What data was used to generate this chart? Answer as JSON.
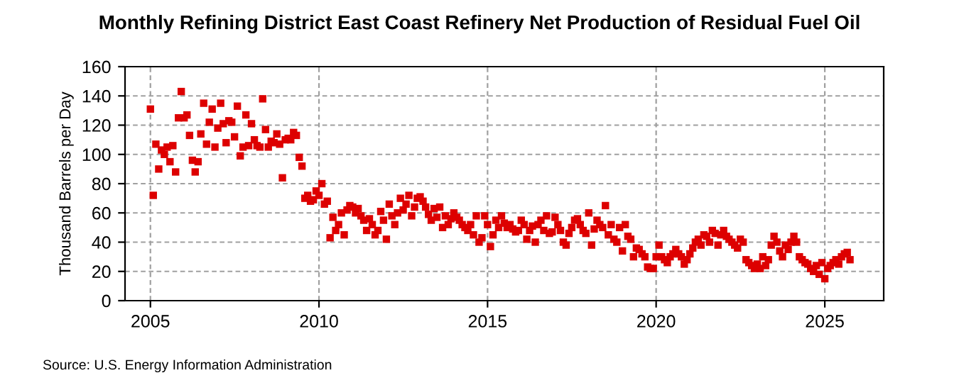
{
  "chart_data": {
    "type": "scatter",
    "title": "Monthly Refining District East Coast Refinery Net Production of Residual Fuel Oil",
    "ylabel": "Thousand Barrels per Day",
    "annotations": [
      "Source: U.S. Energy Information Administration"
    ],
    "series": [
      {
        "color": "#dd0000",
        "x": [
          "2005-01",
          "2005-02",
          "2005-03",
          "2005-04",
          "2005-05",
          "2005-06",
          "2005-07",
          "2005-08",
          "2005-09",
          "2005-10",
          "2005-11",
          "2005-12",
          "2006-01",
          "2006-02",
          "2006-03",
          "2006-04",
          "2006-05",
          "2006-06",
          "2006-07",
          "2006-08",
          "2006-09",
          "2006-10",
          "2006-11",
          "2006-12",
          "2007-01",
          "2007-02",
          "2007-03",
          "2007-04",
          "2007-05",
          "2007-06",
          "2007-07",
          "2007-08",
          "2007-09",
          "2007-10",
          "2007-11",
          "2007-12",
          "2008-01",
          "2008-02",
          "2008-03",
          "2008-04",
          "2008-05",
          "2008-06",
          "2008-07",
          "2008-08",
          "2008-09",
          "2008-10",
          "2008-11",
          "2008-12",
          "2009-01",
          "2009-02",
          "2009-03",
          "2009-04",
          "2009-05",
          "2009-06",
          "2009-07",
          "2009-08",
          "2009-09",
          "2009-10",
          "2009-11",
          "2009-12",
          "2010-01",
          "2010-02",
          "2010-03",
          "2010-04",
          "2010-05",
          "2010-06",
          "2010-07",
          "2010-08",
          "2010-09",
          "2010-10",
          "2010-11",
          "2010-12",
          "2011-01",
          "2011-02",
          "2011-03",
          "2011-04",
          "2011-05",
          "2011-06",
          "2011-07",
          "2011-08",
          "2011-09",
          "2011-10",
          "2011-11",
          "2011-12",
          "2012-01",
          "2012-02",
          "2012-03",
          "2012-04",
          "2012-05",
          "2012-06",
          "2012-07",
          "2012-08",
          "2012-09",
          "2012-10",
          "2012-11",
          "2012-12",
          "2013-01",
          "2013-02",
          "2013-03",
          "2013-04",
          "2013-05",
          "2013-06",
          "2013-07",
          "2013-08",
          "2013-09",
          "2013-10",
          "2013-11",
          "2013-12",
          "2014-01",
          "2014-02",
          "2014-03",
          "2014-04",
          "2014-05",
          "2014-06",
          "2014-07",
          "2014-08",
          "2014-09",
          "2014-10",
          "2014-11",
          "2014-12",
          "2015-01",
          "2015-02",
          "2015-03",
          "2015-04",
          "2015-05",
          "2015-06",
          "2015-07",
          "2015-08",
          "2015-09",
          "2015-10",
          "2015-11",
          "2015-12",
          "2016-01",
          "2016-02",
          "2016-03",
          "2016-04",
          "2016-05",
          "2016-06",
          "2016-07",
          "2016-08",
          "2016-09",
          "2016-10",
          "2016-11",
          "2016-12",
          "2017-01",
          "2017-02",
          "2017-03",
          "2017-04",
          "2017-05",
          "2017-06",
          "2017-07",
          "2017-08",
          "2017-09",
          "2017-10",
          "2017-11",
          "2017-12",
          "2018-01",
          "2018-02",
          "2018-03",
          "2018-04",
          "2018-05",
          "2018-06",
          "2018-07",
          "2018-08",
          "2018-09",
          "2018-10",
          "2018-11",
          "2018-12",
          "2019-01",
          "2019-02",
          "2019-03",
          "2019-04",
          "2019-05",
          "2019-06",
          "2019-07",
          "2019-08",
          "2019-09",
          "2019-10",
          "2019-11",
          "2019-12",
          "2020-01",
          "2020-02",
          "2020-03",
          "2020-04",
          "2020-05",
          "2020-06",
          "2020-07",
          "2020-08",
          "2020-09",
          "2020-10",
          "2020-11",
          "2020-12",
          "2021-01",
          "2021-02",
          "2021-03",
          "2021-04",
          "2021-05",
          "2021-06",
          "2021-07",
          "2021-08",
          "2021-09",
          "2021-10",
          "2021-11",
          "2021-12",
          "2022-01",
          "2022-02",
          "2022-03",
          "2022-04",
          "2022-05",
          "2022-06",
          "2022-07",
          "2022-08",
          "2022-09",
          "2022-10",
          "2022-11",
          "2022-12",
          "2023-01",
          "2023-02",
          "2023-03",
          "2023-04",
          "2023-05",
          "2023-06",
          "2023-07",
          "2023-08",
          "2023-09",
          "2023-10",
          "2023-11",
          "2023-12",
          "2024-01",
          "2024-02",
          "2024-03",
          "2024-04",
          "2024-05",
          "2024-06",
          "2024-07",
          "2024-08",
          "2024-09",
          "2024-10",
          "2024-11",
          "2024-12",
          "2025-01",
          "2025-02",
          "2025-03",
          "2025-04",
          "2025-05",
          "2025-06",
          "2025-07",
          "2025-08",
          "2025-09",
          "2025-10"
        ],
        "values": [
          131,
          72,
          107,
          90,
          103,
          100,
          105,
          95,
          106,
          88,
          125,
          143,
          125,
          127,
          113,
          96,
          88,
          95,
          114,
          135,
          107,
          122,
          131,
          105,
          118,
          135,
          121,
          108,
          123,
          122,
          112,
          133,
          99,
          105,
          127,
          106,
          121,
          110,
          106,
          105,
          138,
          117,
          105,
          109,
          108,
          114,
          107,
          84,
          110,
          111,
          110,
          115,
          113,
          98,
          92,
          70,
          72,
          68,
          69,
          75,
          72,
          80,
          66,
          68,
          43,
          57,
          48,
          52,
          60,
          45,
          62,
          65,
          64,
          60,
          63,
          58,
          55,
          48,
          56,
          52,
          45,
          48,
          61,
          55,
          42,
          66,
          58,
          52,
          60,
          70,
          62,
          66,
          72,
          58,
          64,
          70,
          71,
          68,
          64,
          59,
          55,
          63,
          57,
          64,
          50,
          58,
          52,
          56,
          60,
          57,
          55,
          52,
          50,
          48,
          52,
          45,
          58,
          40,
          43,
          58,
          52,
          37,
          45,
          55,
          50,
          58,
          53,
          50,
          52,
          49,
          47,
          48,
          55,
          52,
          42,
          48,
          51,
          40,
          52,
          55,
          48,
          58,
          46,
          47,
          57,
          52,
          48,
          40,
          38,
          46,
          50,
          55,
          56,
          52,
          48,
          46,
          60,
          38,
          49,
          55,
          52,
          50,
          65,
          45,
          52,
          42,
          40,
          50,
          34,
          52,
          44,
          42,
          30,
          36,
          35,
          32,
          30,
          23,
          22,
          22,
          30,
          38,
          30,
          28,
          26,
          30,
          32,
          35,
          32,
          30,
          25,
          28,
          32,
          36,
          40,
          42,
          38,
          45,
          44,
          40,
          48,
          46,
          38,
          45,
          48,
          44,
          42,
          40,
          38,
          36,
          42,
          40,
          28,
          26,
          24,
          22,
          25,
          22,
          30,
          24,
          28,
          38,
          44,
          40,
          34,
          30,
          38,
          35,
          40,
          44,
          40,
          30,
          28,
          26,
          25,
          22,
          20,
          24,
          18,
          26,
          15,
          22,
          24,
          26,
          28,
          25,
          30,
          32,
          33,
          28
        ]
      }
    ],
    "xlim": [
      "2004-04",
      "2026-10"
    ],
    "xticks": [
      "2005",
      "2010",
      "2015",
      "2020",
      "2025"
    ],
    "ylim": [
      0,
      160
    ],
    "yticks": [
      0,
      20,
      40,
      60,
      80,
      100,
      120,
      140,
      160
    ],
    "grid": true,
    "marker": "square"
  }
}
